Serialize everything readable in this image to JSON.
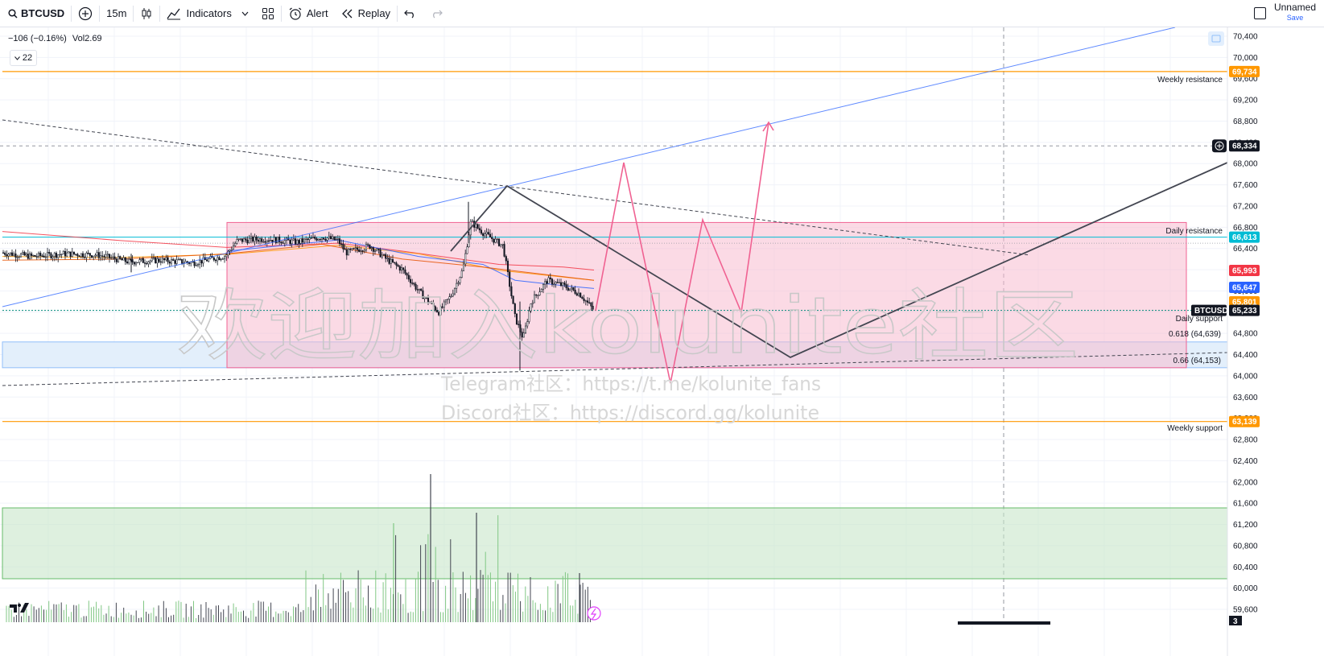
{
  "toolbar": {
    "symbol": "BTCUSD",
    "interval": "15m",
    "indicators_label": "Indicators",
    "alert_label": "Alert",
    "replay_label": "Replay",
    "layout_name": "Unnamed",
    "save_label": "Save"
  },
  "legend": {
    "change": "−106 (−0.16%)",
    "volume_label": "Vol",
    "volume_value": "2.69",
    "collapse_count": "22"
  },
  "price_axis": {
    "ticks": [
      "70,400",
      "70,000",
      "69,600",
      "69,200",
      "68,800",
      "68,400",
      "68,000",
      "67,600",
      "67,200",
      "66,800",
      "66,400",
      "66,000",
      "65,600",
      "65,200",
      "64,800",
      "64,400",
      "64,000",
      "63,600",
      "63,200",
      "62,800",
      "62,400",
      "62,000",
      "61,600",
      "61,200",
      "60,800",
      "60,400",
      "60,000",
      "59,600"
    ],
    "min": 59400,
    "max": 70700
  },
  "price_tags": [
    {
      "label": "69,734",
      "price": 69734,
      "color": "#ff9800"
    },
    {
      "label": "68,334",
      "price": 68334,
      "color": "#131722"
    },
    {
      "label": "66,613",
      "price": 66613,
      "color": "#00bcd4"
    },
    {
      "label": "65,993",
      "price": 65993,
      "color": "#f23645"
    },
    {
      "label": "65,801",
      "price": 65801,
      "color": "#ff9800"
    },
    {
      "label": "65,647",
      "price": 65647,
      "color": "#2962ff"
    },
    {
      "label": "65,233",
      "price": 65233,
      "color": "#131722"
    },
    {
      "label": "63,139",
      "price": 63139,
      "color": "#ff9800"
    }
  ],
  "symbol_tag": "BTCUSD",
  "annotations": {
    "weekly_resistance": "Weekly resistance",
    "daily_resistance": "Daily resistance",
    "daily_support": "Daily support",
    "weekly_support": "Weekly support",
    "fib_618": "0.618 (64,639)",
    "fib_66": "0.66 (64,153)"
  },
  "watermark": {
    "main": "欢迎加入kolunite社区",
    "telegram": "Telegram社区：https://t.me/kolunite_fans",
    "discord": "Discord社区：https://discord.gg/kolunite"
  },
  "bottom_badge": "3",
  "colors": {
    "bull": "#131722",
    "bear": "#131722",
    "volume_green": "#4caf50",
    "volume_dark": "#434651",
    "daily_zone": "#f8bbd0",
    "support_zone": "#bbdefb",
    "volume_zone": "#c8e6c9",
    "trend_blue": "#2962ff",
    "projection_red": "#f23645",
    "projection_dark": "#434651"
  }
}
